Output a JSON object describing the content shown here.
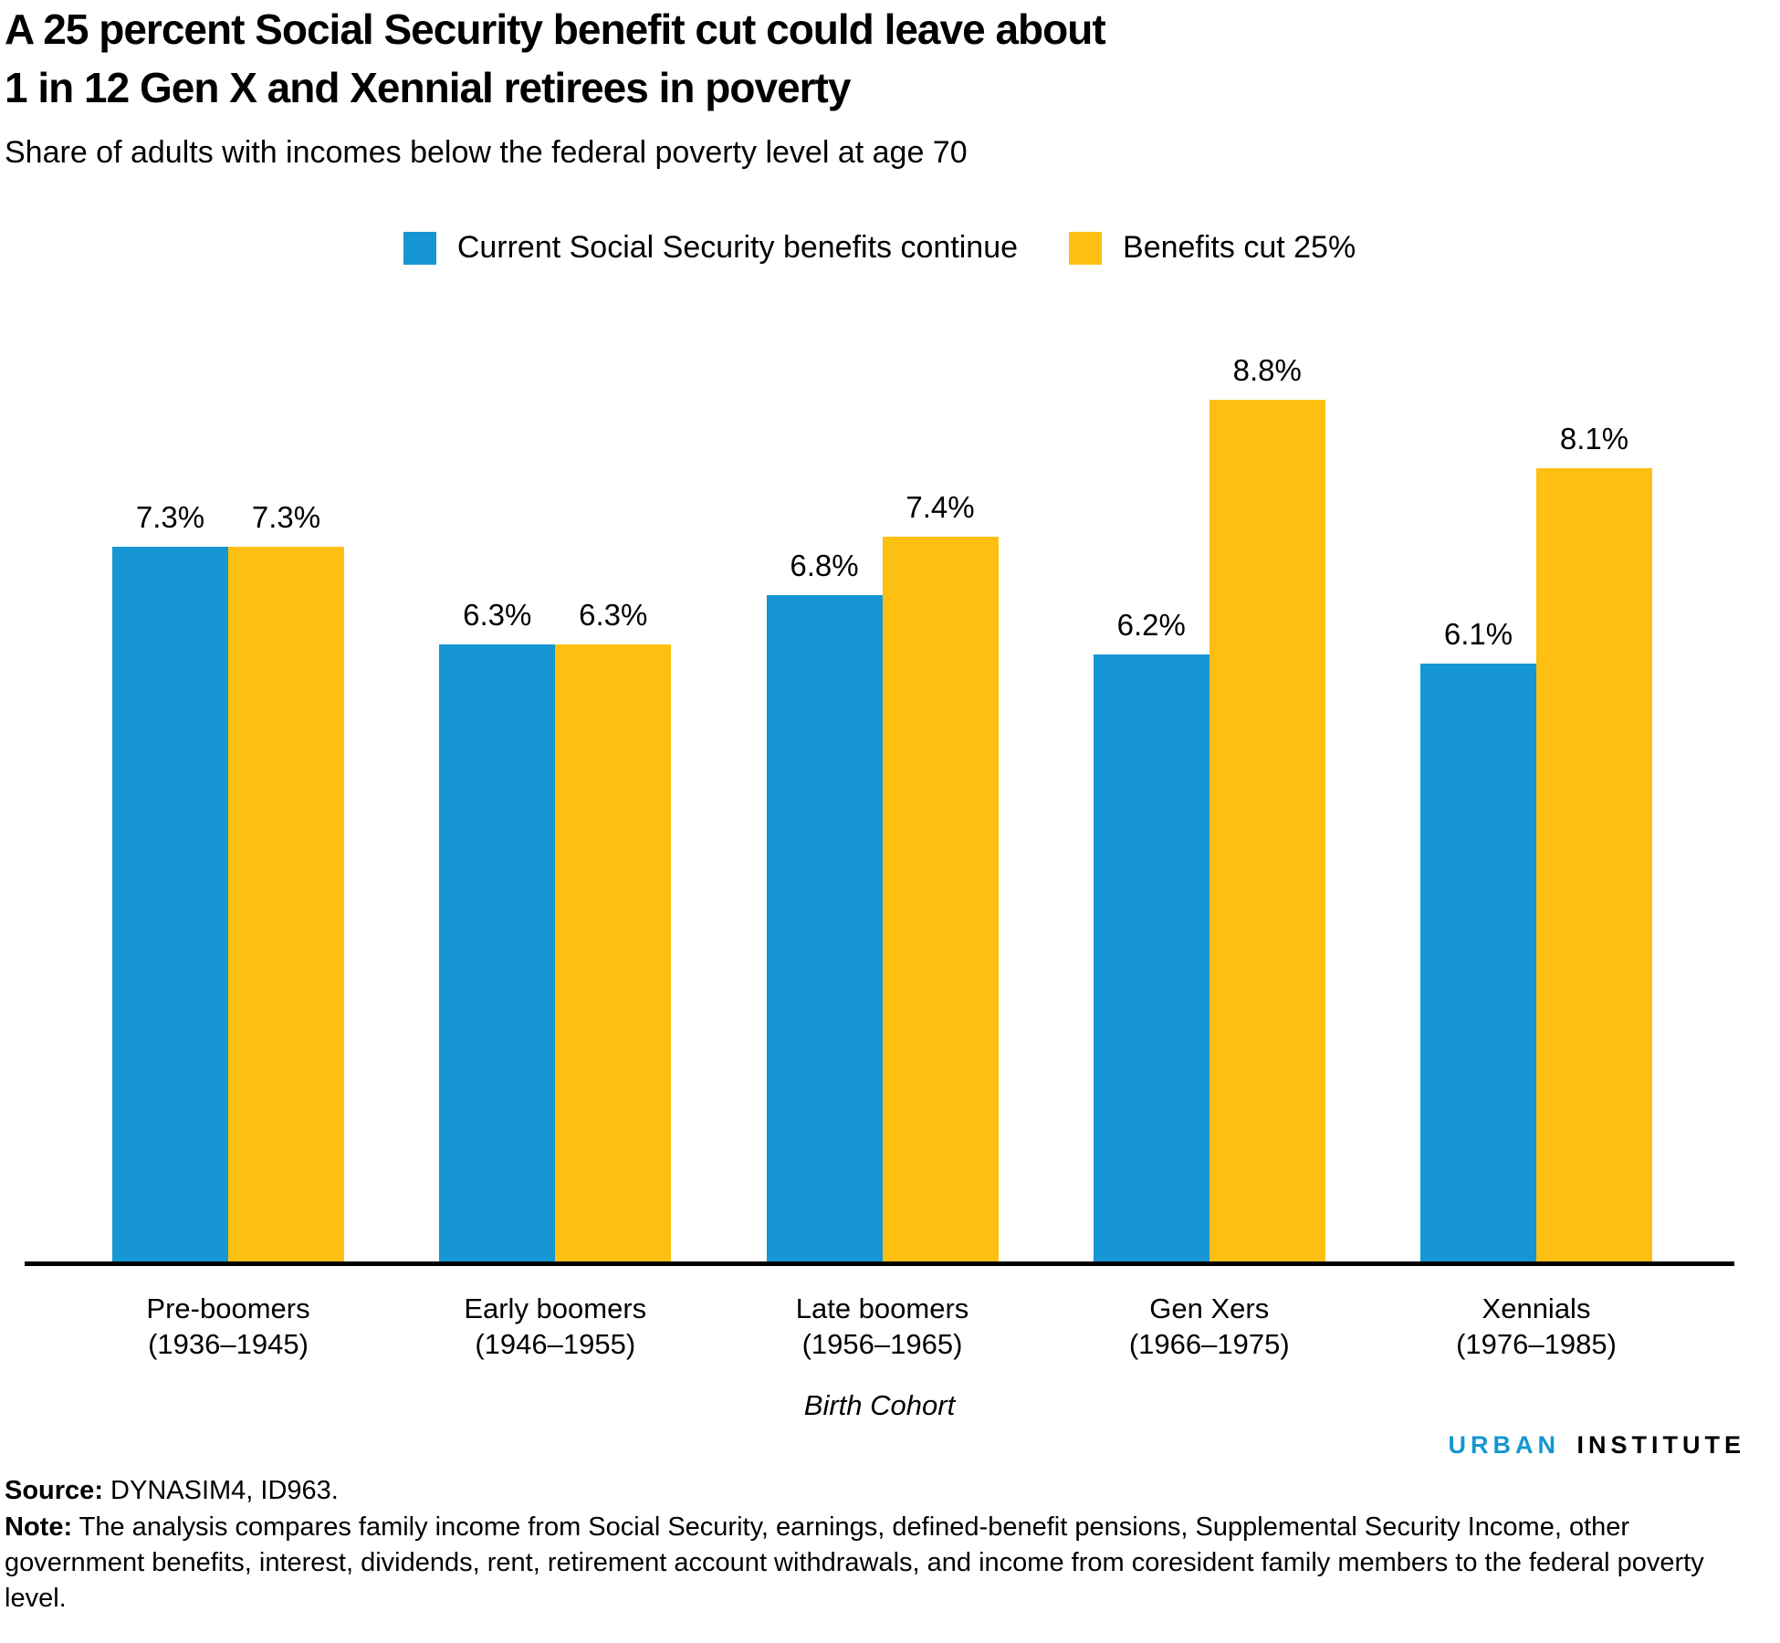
{
  "chart_data": {
    "type": "bar",
    "title": "A 25 percent Social Security benefit cut could leave about\n1 in 12 Gen X and Xennial retirees in poverty",
    "subtitle": "Share of adults with incomes below the federal poverty level at age 70",
    "categories": [
      {
        "label": "Pre-boomers",
        "range": "(1936–1945)"
      },
      {
        "label": "Early boomers",
        "range": "(1946–1955)"
      },
      {
        "label": "Late boomers",
        "range": "(1956–1965)"
      },
      {
        "label": "Gen Xers",
        "range": "(1966–1975)"
      },
      {
        "label": "Xennials",
        "range": "(1976–1985)"
      }
    ],
    "series": [
      {
        "name": "Current Social Security benefits continue",
        "color": "#1696d2",
        "values": [
          7.3,
          6.3,
          6.8,
          6.2,
          6.1
        ],
        "labels": [
          "7.3%",
          "6.3%",
          "6.8%",
          "6.2%",
          "6.1%"
        ]
      },
      {
        "name": "Benefits cut 25%",
        "color": "#fdbf11",
        "values": [
          7.3,
          6.3,
          7.4,
          8.8,
          8.1
        ],
        "labels": [
          "7.3%",
          "6.3%",
          "7.4%",
          "8.8%",
          "8.1%"
        ]
      }
    ],
    "xlabel": "Birth Cohort",
    "ylabel": "",
    "ylim": [
      0,
      10
    ],
    "grid": false,
    "legend_position": "top",
    "value_suffix": "%",
    "axis_color": "#000000"
  },
  "footer": {
    "logo_urban": "URBAN",
    "logo_institute": "INSTITUTE",
    "source_label": "Source:",
    "source_text": "DYNASIM4, ID963.",
    "note_label": "Note:",
    "note_text": "The analysis compares family income from Social Security, earnings, defined-benefit pensions, Supplemental Security Income, other government benefits, interest, dividends, rent, retirement account withdrawals, and income from coresident family members to the federal poverty level."
  }
}
